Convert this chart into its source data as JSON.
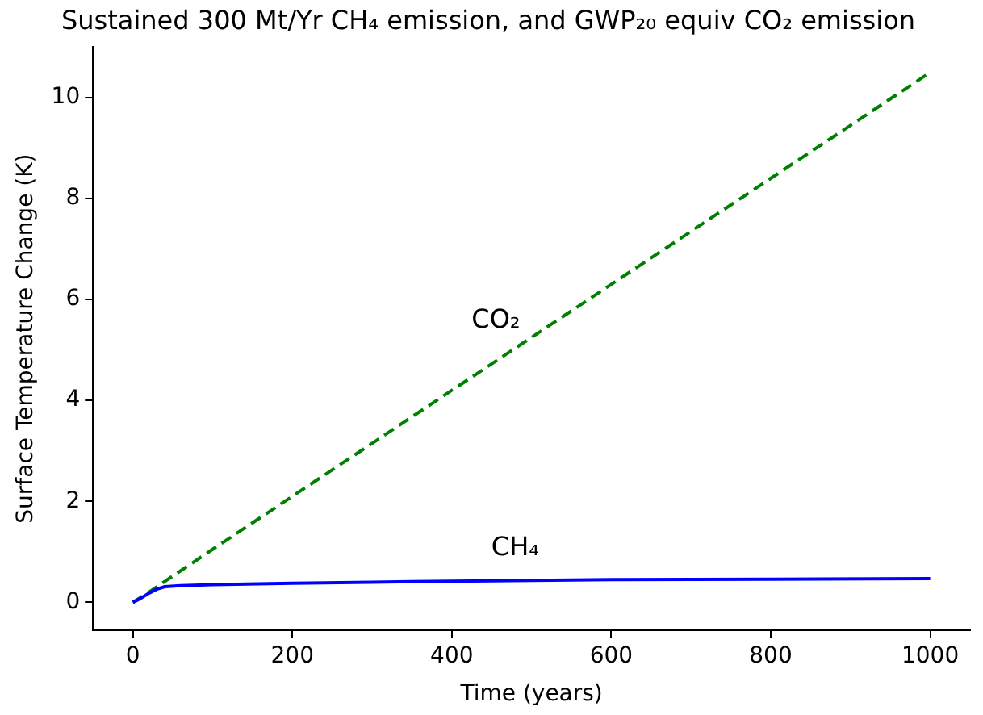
{
  "chart_data": {
    "type": "line",
    "title": "Sustained 300 Mt/Yr CH₄ emission, and GWP₂₀ equiv CO₂ emission",
    "xlabel": "Time (years)",
    "ylabel": "Surface Temperature Change (K)",
    "series": [
      {
        "name": "CH₄",
        "color": "#0000ff",
        "line_style": "solid",
        "x": [
          0,
          10,
          20,
          30,
          40,
          60,
          100,
          200,
          300,
          400,
          600,
          800,
          1000
        ],
        "values": [
          0,
          0.08,
          0.18,
          0.26,
          0.31,
          0.33,
          0.35,
          0.38,
          0.4,
          0.42,
          0.45,
          0.46,
          0.47
        ]
      },
      {
        "name": "CO₂",
        "color": "#008000",
        "line_style": "dashed",
        "x": [
          0,
          20,
          50,
          100,
          200,
          300,
          400,
          500,
          600,
          700,
          800,
          900,
          1000
        ],
        "values": [
          0,
          0.2,
          0.52,
          1.05,
          2.1,
          3.15,
          4.2,
          5.25,
          6.3,
          7.35,
          8.4,
          9.45,
          10.5
        ]
      }
    ],
    "xlim": [
      -50,
      1050
    ],
    "xticks": [
      0,
      200,
      400,
      600,
      800,
      1000
    ],
    "ylim": [
      -0.55,
      11
    ],
    "yticks": [
      0,
      2,
      4,
      6,
      8,
      10
    ],
    "grid": false,
    "legend": false,
    "marker": "none"
  }
}
